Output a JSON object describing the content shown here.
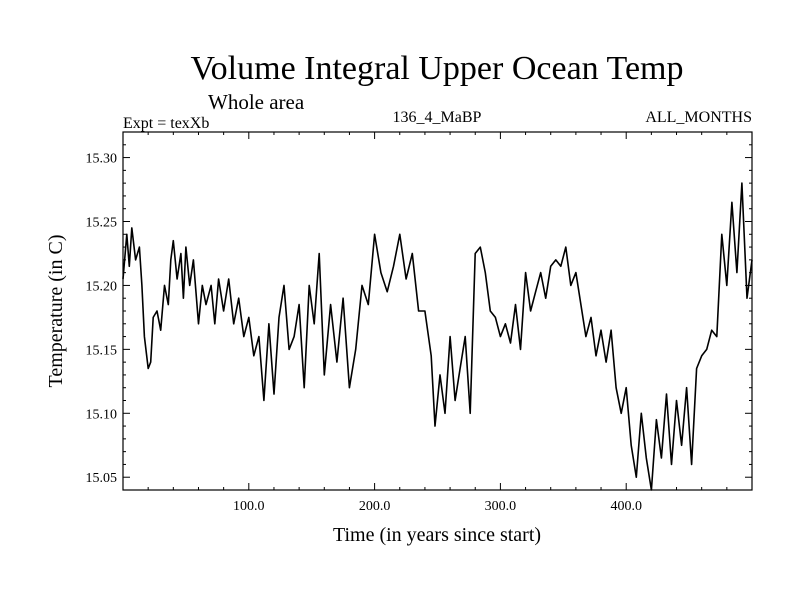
{
  "chart_data": {
    "type": "line",
    "title": "Volume Integral Upper Ocean Temp",
    "subtitle": "Whole area",
    "header_left": "Expt = texXb",
    "header_center": "136_4_MaBP",
    "header_right": "ALL_MONTHS",
    "xlabel": "Time (in years since start)",
    "ylabel": "Temperature (in C)",
    "xlim": [
      0,
      500
    ],
    "ylim": [
      15.04,
      15.32
    ],
    "x_ticks": [
      100,
      200,
      300,
      400
    ],
    "x_tick_labels": [
      "100.0",
      "200.0",
      "300.0",
      "400.0"
    ],
    "y_ticks": [
      15.05,
      15.1,
      15.15,
      15.2,
      15.25,
      15.3
    ],
    "y_tick_labels": [
      "15.05",
      "15.10",
      "15.15",
      "15.20",
      "15.25",
      "15.30"
    ],
    "series": [
      {
        "name": "texXb",
        "x": [
          0,
          3,
          5,
          7,
          10,
          13,
          15,
          17,
          20,
          22,
          24,
          27,
          30,
          33,
          36,
          38,
          40,
          43,
          46,
          48,
          50,
          53,
          56,
          60,
          63,
          66,
          70,
          73,
          76,
          80,
          84,
          88,
          92,
          96,
          100,
          104,
          108,
          112,
          116,
          120,
          124,
          128,
          132,
          136,
          140,
          144,
          148,
          152,
          156,
          160,
          165,
          170,
          175,
          180,
          185,
          190,
          195,
          200,
          205,
          210,
          215,
          220,
          225,
          230,
          235,
          240,
          245,
          248,
          252,
          256,
          260,
          264,
          268,
          272,
          276,
          280,
          284,
          288,
          292,
          296,
          300,
          304,
          308,
          312,
          316,
          320,
          324,
          328,
          332,
          336,
          340,
          344,
          348,
          352,
          356,
          360,
          364,
          368,
          372,
          376,
          380,
          384,
          388,
          392,
          396,
          400,
          404,
          408,
          412,
          416,
          420,
          424,
          428,
          432,
          436,
          440,
          444,
          448,
          452,
          456,
          460,
          464,
          468,
          472,
          476,
          480,
          484,
          488,
          492,
          496,
          500
        ],
        "values": [
          15.205,
          15.24,
          15.215,
          15.245,
          15.22,
          15.23,
          15.2,
          15.16,
          15.135,
          15.14,
          15.175,
          15.18,
          15.165,
          15.2,
          15.185,
          15.22,
          15.235,
          15.205,
          15.225,
          15.19,
          15.23,
          15.2,
          15.22,
          15.17,
          15.2,
          15.185,
          15.2,
          15.17,
          15.205,
          15.18,
          15.205,
          15.17,
          15.19,
          15.16,
          15.175,
          15.145,
          15.16,
          15.11,
          15.17,
          15.115,
          15.175,
          15.2,
          15.15,
          15.16,
          15.185,
          15.12,
          15.2,
          15.17,
          15.225,
          15.13,
          15.185,
          15.14,
          15.19,
          15.12,
          15.15,
          15.2,
          15.185,
          15.24,
          15.21,
          15.195,
          15.215,
          15.24,
          15.205,
          15.225,
          15.18,
          15.18,
          15.145,
          15.09,
          15.13,
          15.1,
          15.16,
          15.11,
          15.135,
          15.16,
          15.1,
          15.225,
          15.23,
          15.21,
          15.18,
          15.175,
          15.16,
          15.17,
          15.155,
          15.185,
          15.15,
          15.21,
          15.18,
          15.195,
          15.21,
          15.19,
          15.215,
          15.22,
          15.215,
          15.23,
          15.2,
          15.21,
          15.185,
          15.16,
          15.175,
          15.145,
          15.165,
          15.14,
          15.165,
          15.12,
          15.1,
          15.12,
          15.075,
          15.05,
          15.1,
          15.065,
          15.04,
          15.095,
          15.065,
          15.115,
          15.06,
          15.11,
          15.075,
          15.12,
          15.06,
          15.135,
          15.145,
          15.15,
          15.165,
          15.16,
          15.24,
          15.2,
          15.265,
          15.21,
          15.28,
          15.19,
          15.22
        ]
      }
    ]
  }
}
